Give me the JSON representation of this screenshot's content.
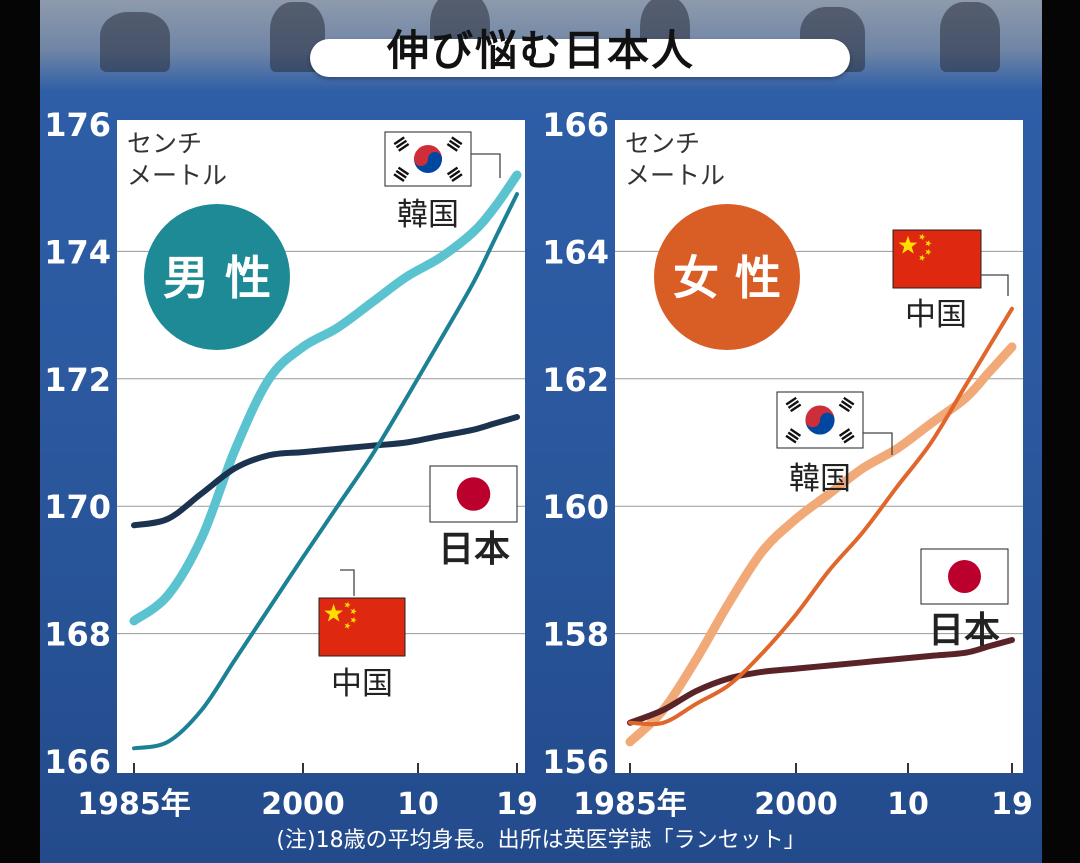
{
  "title": "伸び悩む日本人",
  "footnote": "(注)18歳の平均身長。出所は英医学誌「ランセット」",
  "chart_data": [
    {
      "type": "line",
      "badge": "男 性",
      "unit_line1": "センチ",
      "unit_line2": "メートル",
      "x_tick_labels": [
        "1985年",
        "2000",
        "10",
        "19"
      ],
      "x_ticks": [
        1985,
        2000,
        2010,
        2019
      ],
      "xlim": [
        1985,
        2019
      ],
      "ylim": [
        166,
        176
      ],
      "y_ticks": [
        166,
        168,
        170,
        172,
        174,
        176
      ],
      "grid": true,
      "series": [
        {
          "name": "韓国",
          "color": "#5bc3cf",
          "width": 9,
          "flag": "korea",
          "x": [
            1985,
            1988,
            1991,
            1994,
            1997,
            2000,
            2003,
            2006,
            2009,
            2012,
            2015,
            2017,
            2019
          ],
          "y": [
            168.2,
            168.6,
            169.5,
            170.9,
            172.0,
            172.5,
            172.8,
            173.2,
            173.6,
            173.9,
            174.3,
            174.7,
            175.2
          ]
        },
        {
          "name": "中国",
          "color": "#1d8196",
          "width": 4,
          "flag": "china",
          "x": [
            1985,
            1988,
            1991,
            1994,
            1997,
            2000,
            2003,
            2006,
            2009,
            2012,
            2015,
            2017,
            2019
          ],
          "y": [
            166.2,
            166.3,
            166.8,
            167.6,
            168.4,
            169.2,
            170.0,
            170.8,
            171.7,
            172.6,
            173.5,
            174.2,
            174.9
          ]
        },
        {
          "name": "日本",
          "color": "#1c3350",
          "width": 6,
          "flag": "japan",
          "x": [
            1985,
            1988,
            1991,
            1994,
            1997,
            2000,
            2003,
            2006,
            2009,
            2012,
            2015,
            2017,
            2019
          ],
          "y": [
            169.7,
            169.8,
            170.2,
            170.6,
            170.8,
            170.85,
            170.9,
            170.95,
            171.0,
            171.1,
            171.2,
            171.3,
            171.4
          ]
        }
      ]
    },
    {
      "type": "line",
      "badge": "女 性",
      "unit_line1": "センチ",
      "unit_line2": "メートル",
      "x_tick_labels": [
        "1985年",
        "2000",
        "10",
        "19"
      ],
      "x_ticks": [
        1985,
        2000,
        2010,
        2019
      ],
      "xlim": [
        1985,
        2019
      ],
      "ylim": [
        156,
        166
      ],
      "y_ticks": [
        156,
        158,
        160,
        162,
        164,
        166
      ],
      "grid": true,
      "series": [
        {
          "name": "韓国",
          "color": "#f2a978",
          "width": 9,
          "flag": "korea",
          "x": [
            1985,
            1988,
            1991,
            1994,
            1997,
            2000,
            2003,
            2006,
            2009,
            2012,
            2015,
            2017,
            2019
          ],
          "y": [
            156.3,
            156.8,
            157.6,
            158.5,
            159.3,
            159.8,
            160.2,
            160.6,
            160.9,
            161.3,
            161.7,
            162.1,
            162.5
          ]
        },
        {
          "name": "中国",
          "color": "#e0672c",
          "width": 4,
          "flag": "china",
          "x": [
            1985,
            1988,
            1991,
            1994,
            1997,
            2000,
            2003,
            2006,
            2009,
            2012,
            2015,
            2017,
            2019
          ],
          "y": [
            156.6,
            156.6,
            156.9,
            157.2,
            157.7,
            158.3,
            159.0,
            159.6,
            160.3,
            161.0,
            161.9,
            162.5,
            163.1
          ]
        },
        {
          "name": "日本",
          "color": "#5a2328",
          "width": 6,
          "flag": "japan",
          "x": [
            1985,
            1988,
            1991,
            1994,
            1997,
            2000,
            2003,
            2006,
            2009,
            2012,
            2015,
            2017,
            2019
          ],
          "y": [
            156.6,
            156.8,
            157.1,
            157.3,
            157.4,
            157.45,
            157.5,
            157.55,
            157.6,
            157.65,
            157.7,
            157.8,
            157.9
          ]
        }
      ]
    }
  ],
  "colors": {
    "male_badge": "#1d8a96",
    "female_badge": "#d85e26",
    "korea_red": "#cd2e3a",
    "korea_blue": "#0047a0",
    "china_red": "#de2910",
    "china_star": "#ffde00",
    "japan_red": "#bc002d"
  }
}
